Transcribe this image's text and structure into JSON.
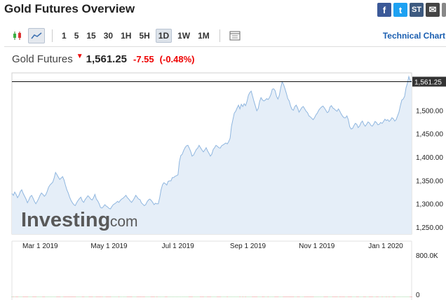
{
  "header": {
    "title": "Gold Futures Overview"
  },
  "share_icons": [
    {
      "icon": "facebook-icon",
      "label": "f"
    },
    {
      "icon": "twitter-icon",
      "label": "t"
    },
    {
      "icon": "stocktwits-icon",
      "label": "ST"
    },
    {
      "icon": "email-icon",
      "label": "✉"
    }
  ],
  "toolbar": {
    "chart_type_icons": [
      "candlestick-icon",
      "area-chart-icon"
    ],
    "intervals": [
      "1",
      "5",
      "15",
      "30",
      "1H",
      "5H",
      "1D",
      "1W",
      "1M"
    ],
    "selected_interval": "1D",
    "settings_icon": "chart-settings-icon",
    "technical_chart_label": "Technical Chart"
  },
  "quote": {
    "name": "Gold Futures",
    "price": "1,561.25",
    "change": "-7.55",
    "change_pct": "(-0.48%)"
  },
  "watermark": {
    "main": "Investing",
    "suffix": ".com"
  },
  "colors": {
    "line": "#8fb6df",
    "area": "#e5eef8",
    "up": "#7bc97e",
    "down": "#d9534f",
    "negative": "#e00000"
  },
  "chart_data": {
    "type": "area",
    "y_unit": "USD",
    "x_tick_labels": [
      "Mar 1 2019",
      "May 1 2019",
      "Jul 1 2019",
      "Sep 1 2019",
      "Nov 1 2019",
      "Jan 1 2020"
    ],
    "y_tick_labels": [
      "1,250.00",
      "1,300.00",
      "1,350.00",
      "1,400.00",
      "1,450.00",
      "1,500.00"
    ],
    "ylim": [
      1235,
      1580
    ],
    "last_price_label": "1,561.25",
    "last_price": 1561.25,
    "series": [
      {
        "values": [
          1322,
          1318,
          1325,
          1320,
          1313,
          1318,
          1326,
          1330,
          1322,
          1316,
          1310,
          1302,
          1308,
          1315,
          1318,
          1312,
          1305,
          1300,
          1305,
          1311,
          1318,
          1323,
          1320,
          1316,
          1319,
          1326,
          1335,
          1340,
          1343,
          1346,
          1355,
          1367,
          1362,
          1357,
          1352,
          1355,
          1358,
          1351,
          1340,
          1330,
          1323,
          1314,
          1307,
          1302,
          1298,
          1296,
          1302,
          1307,
          1311,
          1314,
          1306,
          1303,
          1309,
          1313,
          1317,
          1314,
          1310,
          1308,
          1313,
          1320,
          1310,
          1306,
          1300,
          1292,
          1291,
          1294,
          1298,
          1295,
          1293,
          1290,
          1289,
          1294,
          1298,
          1300,
          1302,
          1305,
          1303,
          1307,
          1310,
          1312,
          1315,
          1318,
          1313,
          1310,
          1306,
          1303,
          1307,
          1312,
          1318,
          1314,
          1310,
          1309,
          1302,
          1299,
          1296,
          1298,
          1304,
          1308,
          1310,
          1307,
          1303,
          1298,
          1301,
          1300,
          1300,
          1313,
          1330,
          1341,
          1345,
          1343,
          1340,
          1348,
          1349,
          1349,
          1356,
          1356,
          1359,
          1360,
          1362,
          1390,
          1403,
          1406,
          1414,
          1420,
          1424,
          1425,
          1419,
          1412,
          1402,
          1404,
          1410,
          1416,
          1419,
          1425,
          1420,
          1415,
          1411,
          1415,
          1420,
          1413,
          1408,
          1402,
          1406,
          1416,
          1420,
          1425,
          1423,
          1420,
          1419,
          1424,
          1426,
          1428,
          1430,
          1428,
          1433,
          1440,
          1466,
          1480,
          1494,
          1498,
          1505,
          1511,
          1503,
          1513,
          1508,
          1514,
          1510,
          1519,
          1532,
          1538,
          1541,
          1530,
          1519,
          1509,
          1499,
          1504,
          1519,
          1527,
          1522,
          1520,
          1522,
          1525,
          1523,
          1527,
          1534,
          1545,
          1546,
          1542,
          1530,
          1524,
          1532,
          1548,
          1561,
          1555,
          1546,
          1536,
          1525,
          1520,
          1509,
          1502,
          1500,
          1508,
          1511,
          1505,
          1496,
          1501,
          1506,
          1508,
          1503,
          1498,
          1495,
          1488,
          1486,
          1483,
          1480,
          1484,
          1490,
          1494,
          1500,
          1504,
          1507,
          1509,
          1505,
          1500,
          1495,
          1497,
          1507,
          1510,
          1505,
          1503,
          1500,
          1498,
          1503,
          1498,
          1492,
          1487,
          1484,
          1484,
          1488,
          1480,
          1465,
          1460,
          1461,
          1467,
          1472,
          1470,
          1463,
          1466,
          1473,
          1477,
          1470,
          1466,
          1470,
          1475,
          1473,
          1468,
          1466,
          1470,
          1476,
          1474,
          1469,
          1470,
          1474,
          1472,
          1476,
          1481,
          1478,
          1480,
          1476,
          1479,
          1484,
          1482,
          1477,
          1480,
          1488,
          1496,
          1510,
          1522,
          1524,
          1530,
          1548,
          1558,
          1572,
          1563,
          1561.25
        ]
      }
    ],
    "volume_ylim": [
      0,
      800000
    ],
    "volume_tick_labels": [
      "800.0K",
      "0"
    ],
    "volume_values": [
      1000,
      1000,
      1000,
      1000,
      1000,
      1000,
      1000,
      1000,
      1000,
      1000,
      1000,
      1000,
      1000,
      1000,
      1000,
      1000,
      1000,
      1000,
      1000,
      1000,
      1000,
      1000,
      1000,
      1000,
      1000,
      1000,
      1000,
      1000,
      1000,
      1000,
      1000,
      1000,
      1000,
      1000,
      1000,
      1000,
      1000,
      1000,
      1000,
      1000,
      1000,
      1000,
      1000,
      1000,
      1000,
      1000,
      1000,
      1000,
      1000,
      1000,
      1000,
      1000,
      1000,
      1000,
      1000,
      1000,
      1000,
      1000,
      1000,
      1000,
      1000,
      1000,
      1000,
      1000,
      1000,
      1000,
      1000,
      1000,
      1000,
      1000,
      1000,
      1000,
      1000,
      1000,
      1000,
      1000,
      1000,
      1000,
      1000,
      1000,
      1000,
      1000,
      1000,
      1000,
      1000,
      1000,
      1000,
      1000,
      1000,
      1000,
      1000,
      1000,
      1000,
      1000,
      1000,
      1000,
      1000,
      1000,
      1000,
      1000,
      1000,
      1000,
      1000,
      1000,
      1000,
      1000,
      1000,
      1000,
      1000,
      1000,
      1000,
      1000,
      1000,
      1000,
      1000,
      1000,
      1000,
      1000,
      1000,
      1000,
      1000,
      1000,
      1000,
      1000,
      1000,
      1000,
      1000,
      1000,
      1000,
      1000,
      1000,
      1000,
      1000,
      1000,
      1000,
      1000,
      1000,
      1000,
      1000,
      1000,
      1000,
      1000,
      1000,
      1000,
      1000,
      1000,
      1000,
      1000,
      1000,
      1000,
      1000,
      1000,
      1000,
      1000,
      1000,
      1000,
      1000,
      1000,
      1000,
      1000,
      1000,
      1000,
      1000,
      1000,
      1000,
      1000,
      1000,
      1000,
      1000,
      1000,
      1000,
      1000,
      1000,
      1000,
      1000,
      1000,
      1000,
      1000,
      1000,
      1000,
      1000,
      1000,
      1000,
      1000,
      1000,
      1000,
      1000,
      1000,
      1000,
      1000,
      1000,
      1000,
      1000,
      1000,
      1000,
      1000,
      1000,
      1000,
      1000,
      1000,
      1000,
      1000,
      1000,
      1000,
      1000,
      1000,
      1000,
      1000,
      1000,
      1000,
      1000,
      1000,
      1000,
      1000,
      1000,
      1000,
      1000,
      1000,
      1000,
      1000,
      1000,
      1000,
      1000,
      1000,
      1000,
      1000,
      1000,
      1000,
      1000,
      1000,
      1000,
      1000,
      1000,
      1000,
      1000,
      1000,
      1000,
      1000,
      1000,
      1000,
      1000,
      1000,
      1000,
      1000,
      1000,
      1000,
      1000,
      1000,
      1000,
      1000,
      1000,
      1000,
      1000,
      1000,
      1000,
      1000,
      1000,
      1000,
      1000,
      1000,
      1000,
      1000,
      1000,
      1000,
      1000,
      1000,
      1000,
      1000,
      1000,
      1000,
      1000,
      1000,
      1000,
      1000,
      1000,
      1000,
      1000,
      1000,
      1000,
      1000,
      1000,
      1000,
      1000,
      1000,
      1000
    ]
  }
}
